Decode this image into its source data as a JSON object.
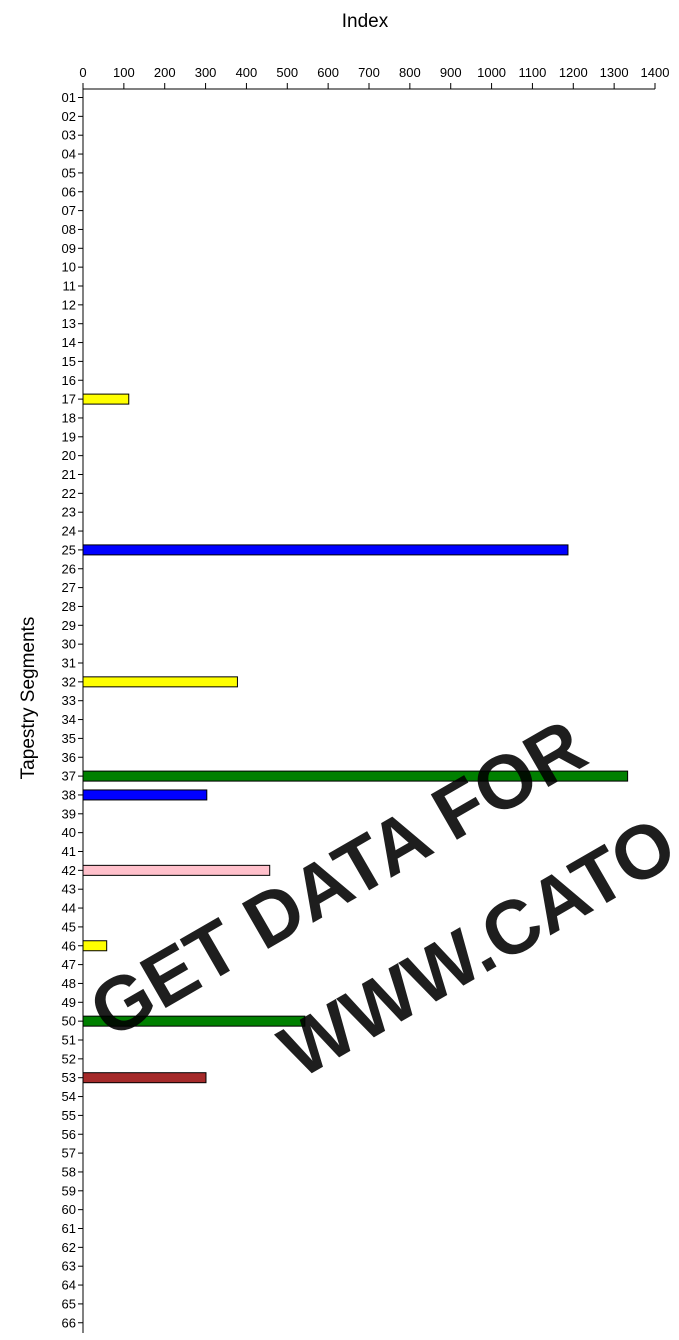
{
  "chart_data": {
    "type": "bar",
    "orientation": "horizontal",
    "xlabel": "Index",
    "ylabel": "Tapestry Segments",
    "xlim": [
      0,
      1400
    ],
    "x_ticks": [
      0,
      100,
      200,
      300,
      400,
      500,
      600,
      700,
      800,
      900,
      1000,
      1100,
      1200,
      1300,
      1400
    ],
    "x_axis_position": "top",
    "grid": false,
    "legend": "none",
    "categories": [
      "01",
      "02",
      "03",
      "04",
      "05",
      "06",
      "07",
      "08",
      "09",
      "10",
      "11",
      "12",
      "13",
      "14",
      "15",
      "16",
      "17",
      "18",
      "19",
      "20",
      "21",
      "22",
      "23",
      "24",
      "25",
      "26",
      "27",
      "28",
      "29",
      "30",
      "31",
      "32",
      "33",
      "34",
      "35",
      "36",
      "37",
      "38",
      "39",
      "40",
      "41",
      "42",
      "43",
      "44",
      "45",
      "46",
      "47",
      "48",
      "49",
      "50",
      "51",
      "52",
      "53",
      "54",
      "55",
      "56",
      "57",
      "58",
      "59",
      "60",
      "61",
      "62",
      "63",
      "64",
      "65",
      "66"
    ],
    "bars": [
      {
        "category": "17",
        "value": 112,
        "color": "#ffff00"
      },
      {
        "category": "25",
        "value": 1187,
        "color": "#0000ff"
      },
      {
        "category": "32",
        "value": 378,
        "color": "#ffff00"
      },
      {
        "category": "37",
        "value": 1333,
        "color": "#008000"
      },
      {
        "category": "38",
        "value": 303,
        "color": "#0000ff"
      },
      {
        "category": "42",
        "value": 457,
        "color": "#ffc0cb"
      },
      {
        "category": "46",
        "value": 58,
        "color": "#ffff00"
      },
      {
        "category": "50",
        "value": 543,
        "color": "#008000"
      },
      {
        "category": "53",
        "value": 301,
        "color": "#a52a2a"
      }
    ]
  },
  "watermark": {
    "line1": "GET DATA FOR",
    "line2": "WWW.CATO"
  }
}
